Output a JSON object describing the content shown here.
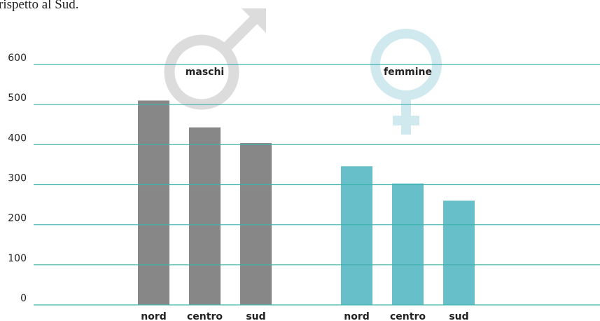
{
  "chart_data": {
    "type": "bar",
    "title": "rispetto al Sud.",
    "categories": [
      "nord",
      "centro",
      "sud"
    ],
    "series": [
      {
        "name": "maschi",
        "color": "#878787",
        "values": [
          510,
          443,
          404
        ]
      },
      {
        "name": "femmine",
        "color": "#67bfca",
        "values": [
          346,
          303,
          260
        ]
      }
    ],
    "ylim": [
      0,
      600
    ],
    "yticks": [
      0,
      100,
      200,
      300,
      400,
      500,
      600
    ],
    "grid": true,
    "grid_color": "#3fb3ad"
  }
}
